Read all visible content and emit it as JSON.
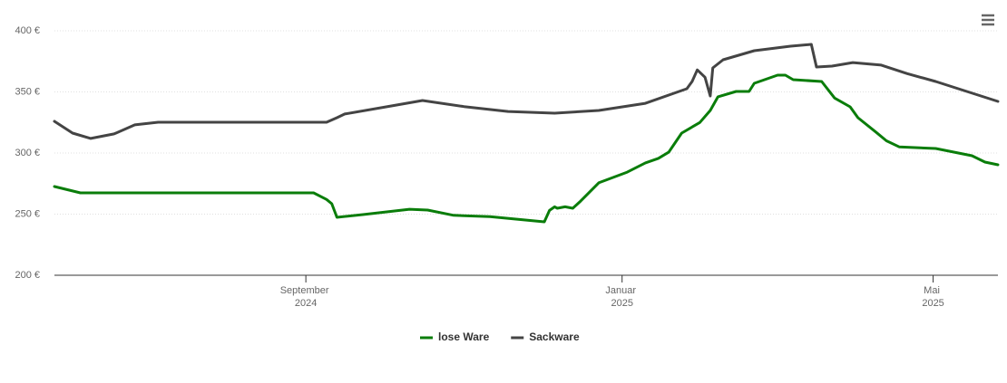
{
  "chart_data": {
    "type": "line",
    "ylim": [
      200,
      400
    ],
    "yticks": [
      {
        "value": 200,
        "label": "200 €"
      },
      {
        "value": 250,
        "label": "250 €"
      },
      {
        "value": 300,
        "label": "300 €"
      },
      {
        "value": 350,
        "label": "350 €"
      },
      {
        "value": 400,
        "label": "400 €"
      }
    ],
    "xlim": [
      "2024-05-27",
      "2025-05-26"
    ],
    "xticks": [
      {
        "value": "2024-09-01",
        "label": "September 2024"
      },
      {
        "value": "2025-01-01",
        "label": "Januar 2025"
      },
      {
        "value": "2025-05-01",
        "label": "Mai 2025"
      }
    ],
    "grid": true,
    "legend": "bottom",
    "series": [
      {
        "name": "lose Ware",
        "color": "#0a7d0a",
        "x": [
          "2024-05-27",
          "2024-06-06",
          "2024-09-04",
          "2024-09-09",
          "2024-09-11",
          "2024-09-13",
          "2024-09-23",
          "2024-10-11",
          "2024-10-18",
          "2024-10-28",
          "2024-11-11",
          "2024-12-02",
          "2024-12-04",
          "2024-12-06",
          "2024-12-07",
          "2024-12-10",
          "2024-12-13",
          "2024-12-16",
          "2024-12-23",
          "2025-01-03",
          "2025-01-10",
          "2025-01-15",
          "2025-01-19",
          "2025-01-24",
          "2025-01-31",
          "2025-02-04",
          "2025-02-07",
          "2025-02-14",
          "2025-02-19",
          "2025-02-21",
          "2025-03-02",
          "2025-03-05",
          "2025-03-08",
          "2025-03-19",
          "2025-03-24",
          "2025-03-30",
          "2025-04-02",
          "2025-04-09",
          "2025-04-13",
          "2025-04-18",
          "2025-05-02",
          "2025-05-16",
          "2025-05-21",
          "2025-05-26"
        ],
        "values": [
          272.6,
          267.4,
          267.4,
          262,
          258.5,
          247.4,
          249.6,
          254,
          253.3,
          249,
          248,
          243.7,
          253,
          256,
          254.8,
          256,
          254.8,
          260.7,
          275.6,
          284.4,
          291.9,
          295.6,
          300.7,
          316.3,
          325,
          334.8,
          346,
          350.4,
          350.4,
          357,
          363.7,
          363.7,
          360,
          358.5,
          345,
          337.8,
          328.9,
          317,
          310,
          305,
          303.7,
          297.8,
          292.6,
          290.4
        ]
      },
      {
        "name": "Sackware",
        "color": "#444444",
        "x": [
          "2024-05-27",
          "2024-06-03",
          "2024-06-10",
          "2024-06-19",
          "2024-06-27",
          "2024-07-06",
          "2024-09-09",
          "2024-09-13",
          "2024-09-16",
          "2024-10-04",
          "2024-10-16",
          "2024-11-01",
          "2024-11-18",
          "2024-12-06",
          "2024-12-23",
          "2025-01-10",
          "2025-01-26",
          "2025-01-28",
          "2025-01-30",
          "2025-02-02",
          "2025-02-04",
          "2025-02-05",
          "2025-02-09",
          "2025-02-21",
          "2025-03-07",
          "2025-03-15",
          "2025-03-17",
          "2025-03-23",
          "2025-03-31",
          "2025-04-11",
          "2025-04-21",
          "2025-05-02",
          "2025-05-26"
        ],
        "values": [
          325.9,
          316.3,
          311.9,
          315.6,
          323,
          325.2,
          325.2,
          328.9,
          331.9,
          338.5,
          343,
          338,
          334,
          332.6,
          334.8,
          340.7,
          352.6,
          358.5,
          368,
          362,
          346.7,
          369.6,
          376.3,
          383.7,
          387.4,
          388.9,
          370.4,
          371.1,
          374,
          371.9,
          365,
          358.5,
          342.2
        ]
      }
    ]
  }
}
